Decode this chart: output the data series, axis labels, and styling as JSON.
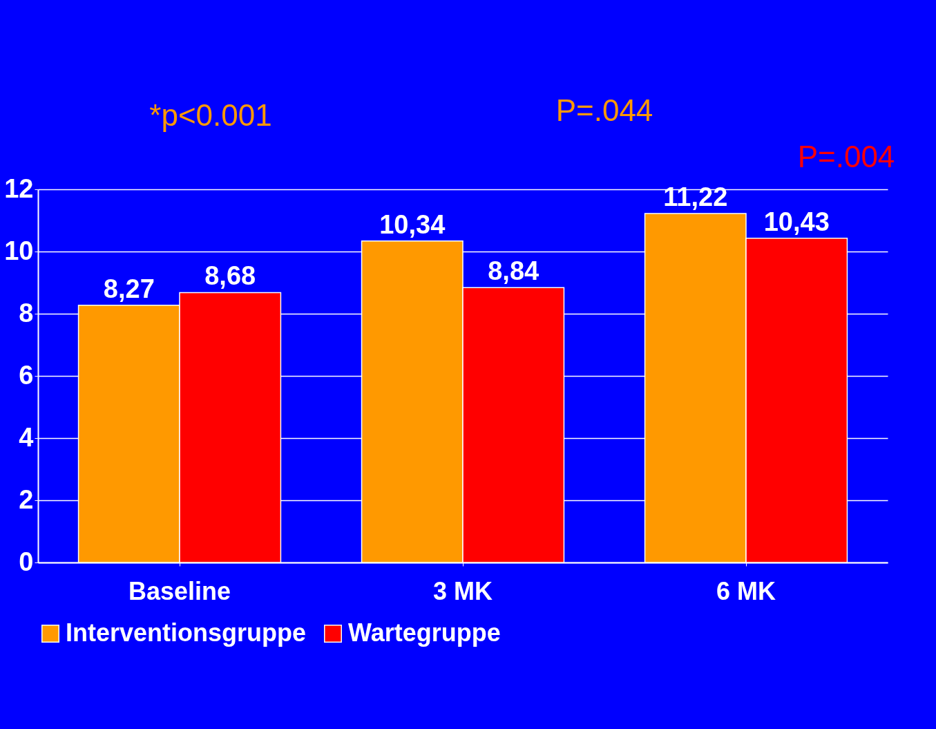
{
  "chart_data": {
    "type": "bar",
    "categories": [
      "Baseline",
      "3 MK",
      "6 MK"
    ],
    "series": [
      {
        "name": "Interventionsgruppe",
        "color": "#ff9900",
        "values": [
          8.27,
          10.34,
          11.22
        ],
        "value_labels": [
          "8,27",
          "10,34",
          "11,22"
        ]
      },
      {
        "name": "Wartegruppe",
        "color": "#ff0000",
        "values": [
          8.68,
          8.84,
          10.43
        ],
        "value_labels": [
          "8,68",
          "8,84",
          "10,43"
        ]
      }
    ],
    "ylim": [
      0,
      12
    ],
    "yticks": [
      0,
      2,
      4,
      6,
      8,
      10,
      12
    ],
    "grid": "y",
    "legend": "bottom",
    "annotations": [
      "*p<0.001",
      "P=.044",
      "P=.004"
    ]
  }
}
